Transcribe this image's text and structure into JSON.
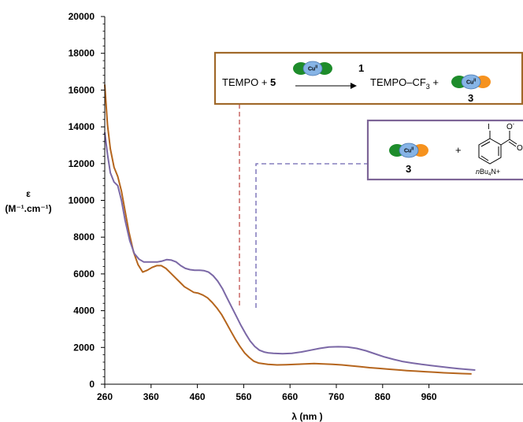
{
  "chart_data": {
    "type": "line",
    "xlabel": "λ (nm )",
    "ylabel_main": "ε",
    "ylabel_unit": "(M⁻¹.cm⁻¹)",
    "xlim": [
      260,
      1060
    ],
    "ylim": [
      0,
      20000
    ],
    "x_ticks": [
      260,
      360,
      460,
      560,
      660,
      760,
      860,
      960
    ],
    "y_ticks": [
      0,
      2000,
      4000,
      6000,
      8000,
      10000,
      12000,
      14000,
      16000,
      18000,
      20000
    ],
    "grid": false,
    "series": [
      {
        "color": "#b5651d",
        "points": [
          [
            260,
            16300
          ],
          [
            266,
            14100
          ],
          [
            272,
            12800
          ],
          [
            280,
            11800
          ],
          [
            288,
            11300
          ],
          [
            296,
            10500
          ],
          [
            304,
            9400
          ],
          [
            312,
            8300
          ],
          [
            322,
            7200
          ],
          [
            332,
            6500
          ],
          [
            342,
            6100
          ],
          [
            352,
            6200
          ],
          [
            362,
            6350
          ],
          [
            372,
            6450
          ],
          [
            382,
            6450
          ],
          [
            392,
            6300
          ],
          [
            402,
            6050
          ],
          [
            412,
            5800
          ],
          [
            422,
            5550
          ],
          [
            432,
            5300
          ],
          [
            442,
            5150
          ],
          [
            452,
            5000
          ],
          [
            462,
            4950
          ],
          [
            472,
            4850
          ],
          [
            482,
            4700
          ],
          [
            492,
            4450
          ],
          [
            502,
            4150
          ],
          [
            512,
            3800
          ],
          [
            522,
            3350
          ],
          [
            532,
            2900
          ],
          [
            542,
            2450
          ],
          [
            552,
            2050
          ],
          [
            562,
            1700
          ],
          [
            572,
            1450
          ],
          [
            582,
            1250
          ],
          [
            592,
            1150
          ],
          [
            612,
            1080
          ],
          [
            632,
            1050
          ],
          [
            652,
            1060
          ],
          [
            672,
            1080
          ],
          [
            692,
            1100
          ],
          [
            712,
            1120
          ],
          [
            732,
            1100
          ],
          [
            752,
            1080
          ],
          [
            772,
            1050
          ],
          [
            792,
            1000
          ],
          [
            812,
            950
          ],
          [
            832,
            900
          ],
          [
            852,
            860
          ],
          [
            872,
            820
          ],
          [
            892,
            780
          ],
          [
            912,
            740
          ],
          [
            932,
            710
          ],
          [
            952,
            680
          ],
          [
            972,
            650
          ],
          [
            992,
            620
          ],
          [
            1012,
            600
          ],
          [
            1032,
            580
          ],
          [
            1052,
            560
          ]
        ]
      },
      {
        "color": "#7b68a6",
        "points": [
          [
            260,
            13700
          ],
          [
            266,
            12500
          ],
          [
            272,
            11500
          ],
          [
            280,
            11000
          ],
          [
            288,
            10800
          ],
          [
            296,
            10000
          ],
          [
            304,
            8900
          ],
          [
            314,
            7800
          ],
          [
            324,
            7100
          ],
          [
            334,
            6800
          ],
          [
            344,
            6650
          ],
          [
            354,
            6650
          ],
          [
            364,
            6650
          ],
          [
            374,
            6650
          ],
          [
            384,
            6700
          ],
          [
            394,
            6780
          ],
          [
            404,
            6750
          ],
          [
            414,
            6650
          ],
          [
            424,
            6450
          ],
          [
            434,
            6300
          ],
          [
            444,
            6230
          ],
          [
            454,
            6200
          ],
          [
            464,
            6200
          ],
          [
            474,
            6180
          ],
          [
            484,
            6100
          ],
          [
            494,
            5900
          ],
          [
            504,
            5600
          ],
          [
            514,
            5200
          ],
          [
            524,
            4700
          ],
          [
            534,
            4200
          ],
          [
            544,
            3700
          ],
          [
            554,
            3200
          ],
          [
            564,
            2750
          ],
          [
            574,
            2350
          ],
          [
            584,
            2050
          ],
          [
            594,
            1850
          ],
          [
            604,
            1750
          ],
          [
            614,
            1700
          ],
          [
            624,
            1680
          ],
          [
            644,
            1660
          ],
          [
            664,
            1680
          ],
          [
            684,
            1750
          ],
          [
            704,
            1850
          ],
          [
            724,
            1950
          ],
          [
            744,
            2020
          ],
          [
            764,
            2040
          ],
          [
            784,
            2020
          ],
          [
            804,
            1950
          ],
          [
            824,
            1820
          ],
          [
            844,
            1650
          ],
          [
            864,
            1480
          ],
          [
            884,
            1350
          ],
          [
            904,
            1230
          ],
          [
            924,
            1150
          ],
          [
            944,
            1080
          ],
          [
            964,
            1020
          ],
          [
            984,
            960
          ],
          [
            1004,
            900
          ],
          [
            1024,
            850
          ],
          [
            1044,
            800
          ],
          [
            1060,
            770
          ]
        ]
      }
    ]
  },
  "box1": {
    "prefix": "TEMPO + ",
    "reagent": "5",
    "catalyst": "1",
    "product": "TEMPO–CF",
    "product_sub": "3",
    "plus": " +",
    "result": "3"
  },
  "box2": {
    "compound": "3",
    "plus": "+",
    "iodo": "I",
    "carboxylate_charge": "-",
    "cation_n": "n",
    "cation_bu": "Bu",
    "cation_sub": "4",
    "cation_tail": "N+"
  },
  "cu_label": "Cu",
  "cu_ox": "II",
  "colors": {
    "brown": "#b5651d",
    "purple": "#7b68a6",
    "green": "#1e8c2b",
    "orange": "#f6921e",
    "blue": "#86b4e6",
    "box1_border": "#a0692a",
    "box2_border": "#7d6597",
    "dash_red": "#c0504d",
    "dash_purple": "#6d64b0"
  }
}
